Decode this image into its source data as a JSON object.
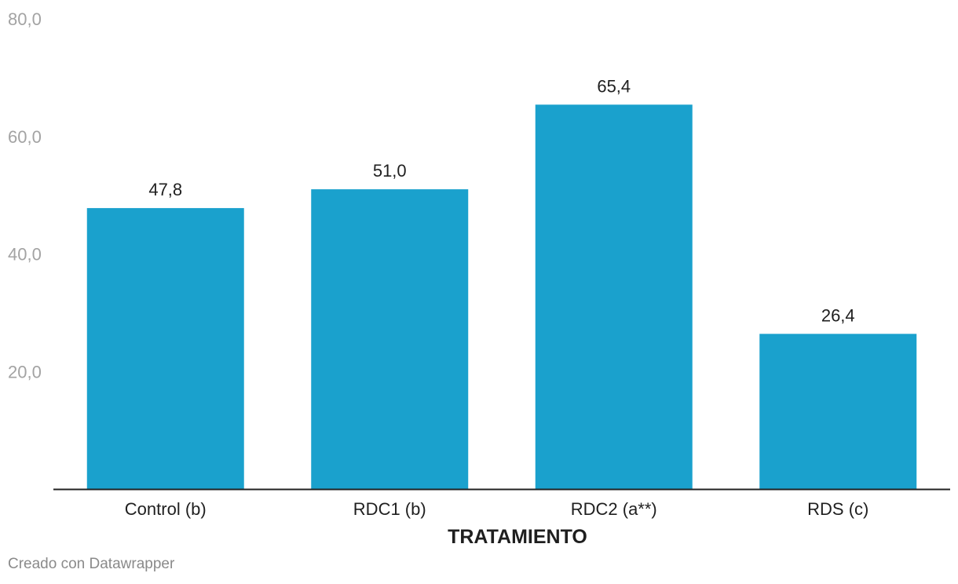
{
  "chart_data": {
    "type": "bar",
    "categories": [
      "Control (b)",
      "RDC1 (b)",
      "RDC2 (a**)",
      "RDS (c)"
    ],
    "values": [
      47.8,
      51.0,
      65.4,
      26.4
    ],
    "value_labels": [
      "47,8",
      "51,0",
      "65,4",
      "26,4"
    ],
    "xlabel": "TRATAMIENTO",
    "ylabel": "",
    "ylim": [
      0,
      80
    ],
    "yticks": [
      20,
      40,
      60,
      80
    ],
    "ytick_labels": [
      "20,0",
      "40,0",
      "60,0",
      "80,0"
    ],
    "grid": false,
    "bar_color": "#1aa1cd"
  },
  "footer": {
    "credit": "Creado con Datawrapper"
  }
}
